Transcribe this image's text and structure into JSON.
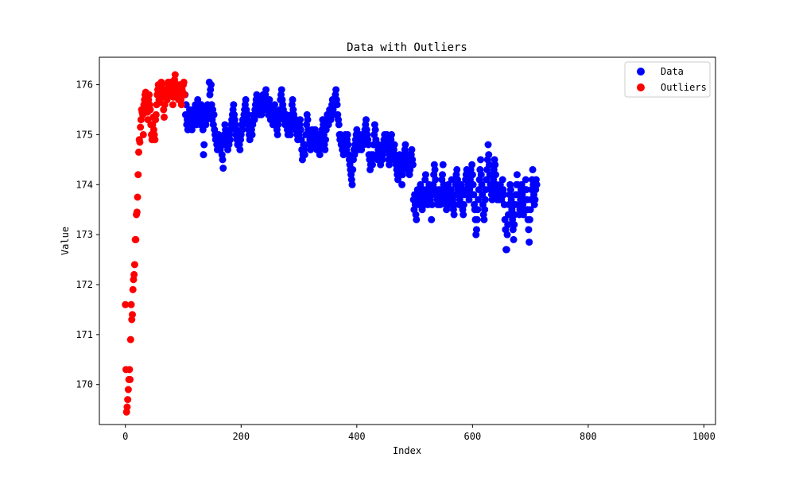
{
  "chart_data": {
    "type": "scatter",
    "title": "Data with Outliers",
    "xlabel": "Index",
    "ylabel": "Value",
    "xlim": [
      -45,
      1020
    ],
    "ylim": [
      169.2,
      176.55
    ],
    "xticks": [
      0,
      200,
      400,
      600,
      800,
      1000
    ],
    "yticks": [
      170,
      171,
      172,
      173,
      174,
      175,
      176
    ],
    "grid": false,
    "legend_position": "top-right",
    "series": [
      {
        "name": "Data",
        "color": "#0000ff",
        "x_start": 103,
        "y": [
          175.8,
          175.4,
          175.6,
          175.2,
          175.3,
          175.1,
          175.4,
          175.2,
          175.5,
          175.3,
          175.2,
          175.4,
          175.1,
          175.3,
          175.5,
          175.2,
          175.4,
          175.3,
          175.6,
          175.3,
          175.2,
          175.5,
          175.7,
          175.4,
          175.3,
          175.4,
          175.5,
          175.2,
          175.6,
          175.4,
          175.3,
          175.1,
          174.6,
          174.8,
          175.5,
          175.4,
          175.2,
          175.3,
          175.4,
          175.6,
          175.4,
          175.5,
          176.05,
          175.8,
          175.9,
          176.0,
          175.6,
          175.3,
          175.5,
          175.2,
          175.4,
          175.1,
          175.0,
          174.9,
          175.0,
          174.8,
          174.7,
          174.9,
          175.0,
          174.9,
          174.8,
          174.7,
          174.9,
          174.8,
          174.6,
          174.5,
          174.33,
          174.8,
          175.0,
          175.2,
          175.1,
          174.9,
          174.8,
          175.0,
          174.7,
          174.9,
          174.8,
          175.0,
          174.9,
          175.1,
          175.2,
          175.3,
          175.4,
          175.5,
          175.6,
          175.4,
          175.3,
          175.2,
          175.0,
          175.1,
          174.9,
          174.8,
          174.9,
          175.0,
          174.8,
          174.7,
          174.9,
          175.0,
          175.2,
          175.1,
          175.3,
          175.2,
          175.4,
          175.5,
          175.6,
          175.7,
          175.5,
          175.3,
          175.2,
          175.4,
          175.1,
          175.0,
          174.9,
          175.0,
          175.2,
          175.1,
          175.0,
          175.2,
          175.3,
          175.4,
          175.3,
          175.5,
          175.6,
          175.7,
          175.8,
          175.7,
          175.6,
          175.5,
          175.4,
          175.6,
          175.7,
          175.5,
          175.4,
          175.6,
          175.7,
          175.8,
          175.6,
          175.5,
          175.7,
          175.8,
          175.9,
          175.7,
          175.6,
          175.5,
          175.4,
          175.6,
          175.7,
          175.5,
          175.3,
          175.4,
          175.5,
          175.3,
          175.2,
          175.4,
          175.5,
          175.6,
          175.4,
          175.3,
          175.2,
          175.1,
          175.0,
          175.2,
          175.3,
          175.4,
          175.5,
          175.7,
          175.8,
          175.9,
          175.7,
          175.6,
          175.5,
          175.3,
          175.4,
          175.2,
          175.3,
          175.4,
          175.2,
          175.1,
          175.0,
          175.2,
          175.3,
          175.1,
          175.0,
          175.2,
          175.4,
          175.6,
          175.7,
          175.5,
          175.4,
          175.3,
          175.2,
          175.1,
          175.3,
          175.2,
          175.0,
          174.9,
          175.1,
          175.0,
          175.2,
          175.3,
          175.1,
          174.9,
          174.7,
          174.5,
          174.6,
          174.8,
          174.7,
          174.6,
          174.8,
          175.0,
          175.2,
          175.4,
          175.3,
          175.1,
          175.0,
          174.8,
          174.9,
          174.7,
          174.8,
          175.0,
          175.1,
          175.0,
          174.9,
          174.8,
          175.0,
          175.1,
          174.9,
          174.8,
          174.7,
          174.9,
          175.0,
          174.8,
          174.7,
          174.6,
          174.8,
          174.9,
          175.0,
          175.1,
          175.3,
          175.2,
          175.0,
          174.8,
          174.7,
          174.9,
          175.1,
          175.2,
          175.4,
          175.3,
          175.2,
          175.4,
          175.5,
          175.4,
          175.3,
          175.5,
          175.6,
          175.7,
          175.5,
          175.4,
          175.6,
          175.7,
          175.8,
          175.9,
          175.7,
          175.6,
          175.4,
          175.3,
          175.2,
          175.0,
          174.9,
          175.0,
          174.8,
          174.9,
          174.7,
          174.8,
          174.6,
          174.7,
          174.9,
          175.0,
          174.8,
          174.7,
          174.9,
          175.0,
          174.8,
          174.6,
          174.5,
          174.4,
          174.3,
          174.2,
          174.1,
          174.0,
          174.3,
          174.5,
          174.7,
          174.6,
          174.8,
          174.9,
          175.0,
          175.1,
          174.9,
          174.8,
          174.7,
          174.9,
          175.0,
          174.9,
          174.8,
          174.7,
          174.9,
          175.0,
          174.9,
          174.8,
          175.0,
          175.1,
          175.2,
          175.3,
          175.1,
          175.0,
          174.9,
          174.8,
          174.6,
          174.5,
          174.3,
          174.4,
          174.6,
          174.5,
          174.4,
          174.6,
          174.8,
          175.0,
          175.2,
          175.1,
          174.9,
          174.8,
          174.6,
          174.5,
          174.7,
          174.8,
          174.6,
          174.5,
          174.4,
          174.6,
          174.7,
          174.5,
          174.6,
          174.8,
          174.9,
          175.0,
          174.8,
          174.7,
          174.9,
          175.0,
          174.8,
          174.7,
          174.5,
          174.4,
          174.6,
          174.7,
          174.9,
          175.0,
          174.8,
          174.6,
          174.5,
          174.7,
          174.8,
          174.6,
          174.5,
          174.4,
          174.3,
          174.2,
          174.1,
          174.3,
          174.4,
          174.6,
          174.5,
          174.3,
          174.2,
          174.0,
          174.2,
          174.4,
          174.5,
          174.6,
          174.7,
          174.8,
          174.6,
          174.4,
          174.3,
          174.5,
          174.6,
          174.4,
          174.2,
          174.3,
          174.5,
          174.6,
          174.7,
          174.5,
          174.4,
          173.7,
          173.5,
          173.8,
          173.6,
          173.4,
          173.3,
          173.7,
          173.9,
          173.8,
          173.6,
          173.7,
          173.9,
          174.0,
          173.8,
          173.7,
          173.5,
          173.8,
          173.9,
          173.7,
          173.6,
          174.1,
          174.2,
          173.9,
          173.7,
          173.8,
          173.6,
          173.9,
          174.0,
          173.8,
          173.7,
          173.9,
          173.3,
          173.6,
          173.8,
          174.0,
          174.2,
          174.4,
          174.3,
          174.1,
          173.9,
          173.8,
          173.7,
          173.6,
          173.8,
          173.9,
          173.7,
          173.6,
          173.8,
          173.9,
          174.1,
          174.2,
          174.4,
          174.0,
          173.8,
          173.7,
          173.9,
          173.6,
          173.5,
          173.7,
          173.8,
          174.0,
          173.9,
          173.7,
          173.6,
          173.8,
          173.9,
          174.1,
          173.8,
          173.7,
          173.5,
          173.4,
          173.6,
          173.8,
          174.0,
          174.2,
          174.3,
          174.1,
          173.9,
          173.8,
          173.6,
          173.7,
          173.9,
          174.0,
          173.8,
          173.6,
          173.5,
          173.4,
          173.6,
          173.8,
          173.9,
          174.1,
          174.2,
          174.3,
          174.1,
          174.0,
          173.8,
          173.7,
          173.9,
          174.1,
          174.3,
          174.2,
          174.4,
          174.2,
          174.0,
          173.8,
          173.6,
          173.5,
          173.3,
          173.0,
          173.1,
          173.3,
          173.5,
          173.7,
          173.9,
          174.1,
          174.3,
          174.5,
          174.2,
          174.0,
          173.8,
          173.6,
          173.4,
          173.3,
          173.5,
          173.7,
          173.9,
          174.1,
          174.3,
          174.5,
          174.8,
          174.6,
          174.4,
          174.2,
          174.0,
          173.9,
          173.8,
          173.7,
          173.9,
          174.1,
          174.3,
          174.5,
          174.4,
          174.2,
          174.0,
          173.8,
          173.7,
          173.9,
          173.8,
          173.7,
          173.9,
          174.0,
          173.8,
          173.7,
          173.9,
          174.1,
          173.9,
          173.8,
          173.6,
          173.3,
          173.1,
          172.7,
          172.7,
          173.0,
          173.2,
          173.4,
          173.6,
          173.8,
          174.0,
          173.9,
          173.7,
          173.5,
          173.3,
          173.1,
          172.9,
          173.2,
          173.4,
          173.6,
          173.8,
          174.0,
          174.2,
          174.0,
          173.8,
          173.6,
          173.4,
          173.5,
          173.7,
          173.9,
          174.0,
          173.8,
          173.6,
          173.4,
          173.5,
          173.7,
          173.9,
          174.1,
          173.9,
          173.7,
          173.5,
          173.3,
          173.1,
          172.85,
          173.3,
          173.5,
          173.7,
          173.9,
          174.1,
          174.3,
          174.0,
          173.8,
          173.6,
          173.7,
          173.9,
          174.1,
          174.0
        ]
      },
      {
        "name": "Outliers",
        "color": "#ff0000",
        "x_start": 0,
        "y": [
          171.6,
          170.3,
          169.45,
          169.55,
          169.7,
          169.9,
          170.1,
          170.3,
          170.1,
          170.9,
          171.6,
          171.3,
          171.4,
          171.9,
          172.1,
          172.2,
          172.4,
          172.9,
          172.9,
          173.4,
          173.45,
          173.75,
          174.2,
          174.65,
          174.9,
          174.85,
          175.15,
          175.3,
          175.5,
          175.45,
          175.4,
          175.0,
          175.6,
          175.7,
          175.8,
          175.85,
          175.5,
          175.6,
          175.45,
          175.3,
          175.7,
          175.8,
          175.6,
          175.5,
          175.2,
          175.0,
          174.9,
          175.2,
          175.35,
          175.1,
          175.0,
          174.9,
          175.3,
          175.4,
          175.6,
          175.8,
          175.9,
          176.0,
          175.7,
          175.8,
          175.65,
          175.9,
          176.05,
          176.0,
          175.8,
          175.75,
          175.5,
          175.35,
          175.6,
          175.8,
          175.9,
          175.8,
          175.7,
          175.9,
          176.05,
          176.0,
          175.9,
          175.85,
          176.0,
          176.05,
          175.8,
          175.9,
          175.6,
          175.75,
          175.9,
          176.1,
          176.2,
          176.0,
          175.9,
          175.8,
          176.0,
          175.85,
          175.7,
          175.9,
          176.0,
          175.8,
          175.7,
          175.6,
          175.9,
          175.85,
          176.0,
          176.05,
          175.8
        ]
      }
    ]
  }
}
